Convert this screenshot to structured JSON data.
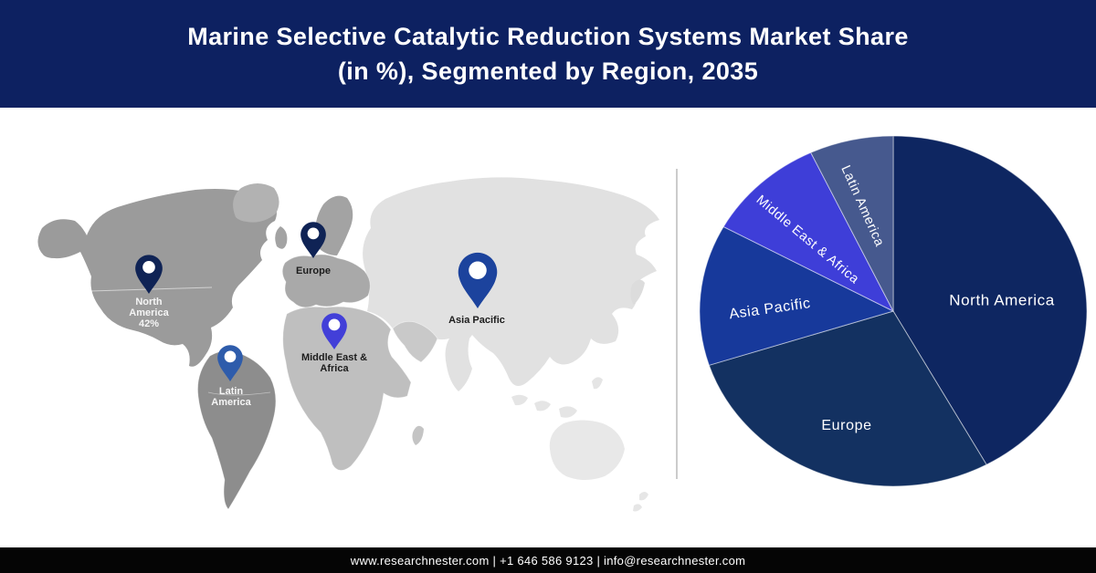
{
  "header": {
    "title_line1": "Marine Selective Catalytic Reduction Systems Market Share",
    "title_line2": "(in %), Segmented by Region, 2035",
    "bg_color": "#0d2161",
    "text_color": "#ffffff"
  },
  "map": {
    "pins": [
      {
        "region": "North America",
        "label_lines": [
          "North",
          "America",
          "42%"
        ],
        "share_label": "42%",
        "pin_color": "#0f2355",
        "label_color": "#f5f5f5"
      },
      {
        "region": "Europe",
        "label_lines": [
          "Europe"
        ],
        "share_label": "",
        "pin_color": "#0f2355",
        "label_color": "#1c1c1c"
      },
      {
        "region": "Middle East & Africa",
        "label_lines": [
          "Middle East &",
          "Africa"
        ],
        "share_label": "",
        "pin_color": "#423fd8",
        "label_color": "#1c1c1c"
      },
      {
        "region": "Asia Pacific",
        "label_lines": [
          "Asia Pacific"
        ],
        "share_label": "",
        "pin_color": "#1c439d",
        "label_color": "#1c1c1c"
      },
      {
        "region": "Latin America",
        "label_lines": [
          "Latin",
          "America"
        ],
        "share_label": "",
        "pin_color": "#2e5cab",
        "label_color": "#f5f5f5"
      }
    ]
  },
  "chart_data": {
    "type": "pie",
    "title": "Marine Selective Catalytic Reduction Systems Market Share (in %), Segmented by Region, 2035",
    "unit": "%",
    "start_angle_deg": 0,
    "direction": "clockwise",
    "legend_position": "none",
    "slices": [
      {
        "label": "North America",
        "value": 42,
        "color": "#0e2661"
      },
      {
        "label": "Europe",
        "value": 28,
        "color": "#133161"
      },
      {
        "label": "Asia Pacific",
        "value": 13,
        "color": "#17399b"
      },
      {
        "label": "Middle East & Africa",
        "value": 10,
        "color": "#3e3ed8"
      },
      {
        "label": "Latin America",
        "value": 7,
        "color": "#46598e"
      }
    ]
  },
  "footer": {
    "text": "www.researchnester.com | +1 646 586 9123 | info@researchnester.com"
  }
}
